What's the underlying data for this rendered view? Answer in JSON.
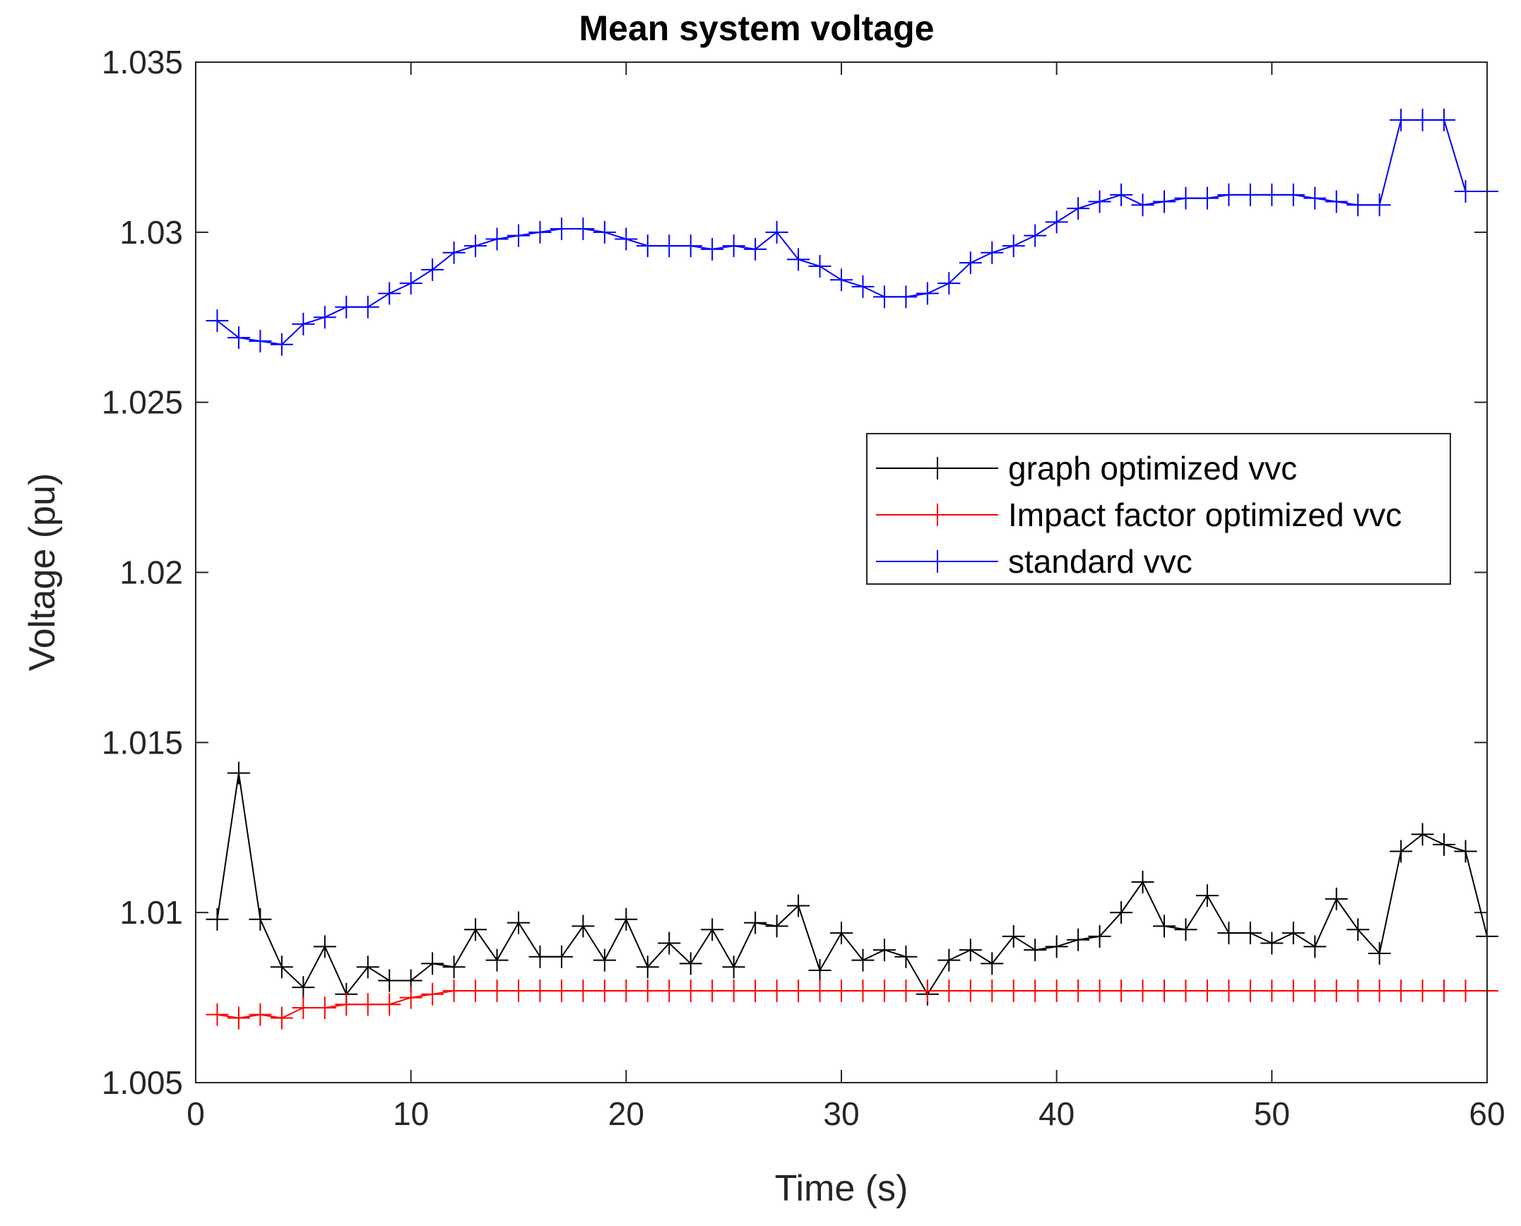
{
  "chart_data": {
    "type": "line",
    "title": "Mean system voltage",
    "xlabel": "Time (s)",
    "ylabel": "Voltage (pu)",
    "xlim": [
      0,
      60
    ],
    "ylim": [
      1.005,
      1.035
    ],
    "xticks": [
      0,
      10,
      20,
      30,
      40,
      50,
      60
    ],
    "xtick_labels": [
      "0",
      "10",
      "20",
      "30",
      "40",
      "50",
      "60"
    ],
    "yticks": [
      1.005,
      1.01,
      1.015,
      1.02,
      1.025,
      1.03,
      1.035
    ],
    "ytick_labels": [
      "1.005",
      "1.01",
      "1.015",
      "1.02",
      "1.025",
      "1.03",
      "1.035"
    ],
    "grid": false,
    "legend_position": "upper-right",
    "x": [
      1,
      2,
      3,
      4,
      5,
      6,
      7,
      8,
      9,
      10,
      11,
      12,
      13,
      14,
      15,
      16,
      17,
      18,
      19,
      20,
      21,
      22,
      23,
      24,
      25,
      26,
      27,
      28,
      29,
      30,
      31,
      32,
      33,
      34,
      35,
      36,
      37,
      38,
      39,
      40,
      41,
      42,
      43,
      44,
      45,
      46,
      47,
      48,
      49,
      50,
      51,
      52,
      53,
      54,
      55,
      56,
      57,
      58,
      59,
      60
    ],
    "series": [
      {
        "name": "graph optimized vvc",
        "color": "#000000",
        "marker": "+",
        "values": [
          1.0098,
          1.0141,
          1.0098,
          1.0084,
          1.0078,
          1.009,
          1.0076,
          1.0084,
          1.008,
          1.008,
          1.0085,
          1.0084,
          1.0095,
          1.0086,
          1.0097,
          1.0087,
          1.0087,
          1.0096,
          1.0086,
          1.0098,
          1.0084,
          1.0091,
          1.0085,
          1.0095,
          1.0084,
          1.0097,
          1.0096,
          1.0102,
          1.0083,
          1.0094,
          1.0086,
          1.0089,
          1.0087,
          1.0076,
          1.0086,
          1.0089,
          1.0085,
          1.0093,
          1.0089,
          1.009,
          1.0092,
          1.0093,
          1.01,
          1.0109,
          1.0096,
          1.0095,
          1.0105,
          1.0094,
          1.0094,
          1.0091,
          1.0094,
          1.009,
          1.0104,
          1.0095,
          1.0088,
          1.0118,
          1.0123,
          1.012,
          1.0118,
          1.0093
        ]
      },
      {
        "name": "Impact factor optimized vvc",
        "color": "#ff0000",
        "marker": "+",
        "values": [
          1.007,
          1.0069,
          1.007,
          1.0069,
          1.0072,
          1.0072,
          1.0073,
          1.0073,
          1.0073,
          1.0075,
          1.0076,
          1.0077,
          1.0077,
          1.0077,
          1.0077,
          1.0077,
          1.0077,
          1.0077,
          1.0077,
          1.0077,
          1.0077,
          1.0077,
          1.0077,
          1.0077,
          1.0077,
          1.0077,
          1.0077,
          1.0077,
          1.0077,
          1.0077,
          1.0077,
          1.0077,
          1.0077,
          1.0077,
          1.0077,
          1.0077,
          1.0077,
          1.0077,
          1.0077,
          1.0077,
          1.0077,
          1.0077,
          1.0077,
          1.0077,
          1.0077,
          1.0077,
          1.0077,
          1.0077,
          1.0077,
          1.0077,
          1.0077,
          1.0077,
          1.0077,
          1.0077,
          1.0077,
          1.0077,
          1.0077,
          1.0077,
          1.0077,
          1.0077
        ]
      },
      {
        "name": "standard vvc",
        "color": "#0000ff",
        "marker": "+",
        "values": [
          1.0274,
          1.0269,
          1.0268,
          1.0267,
          1.0273,
          1.0275,
          1.0278,
          1.0278,
          1.0282,
          1.0285,
          1.0289,
          1.0294,
          1.0296,
          1.0298,
          1.0299,
          1.03,
          1.0301,
          1.0301,
          1.03,
          1.0298,
          1.0296,
          1.0296,
          1.0296,
          1.0295,
          1.0296,
          1.0295,
          1.03,
          1.0292,
          1.029,
          1.0286,
          1.0284,
          1.0281,
          1.0281,
          1.0282,
          1.0285,
          1.0291,
          1.0294,
          1.0296,
          1.0299,
          1.0303,
          1.0307,
          1.0309,
          1.0311,
          1.0308,
          1.0309,
          1.031,
          1.031,
          1.0311,
          1.0311,
          1.0311,
          1.0311,
          1.031,
          1.0309,
          1.0308,
          1.0308,
          1.0333,
          1.0333,
          1.0333,
          1.0312,
          1.0312
        ]
      }
    ]
  }
}
